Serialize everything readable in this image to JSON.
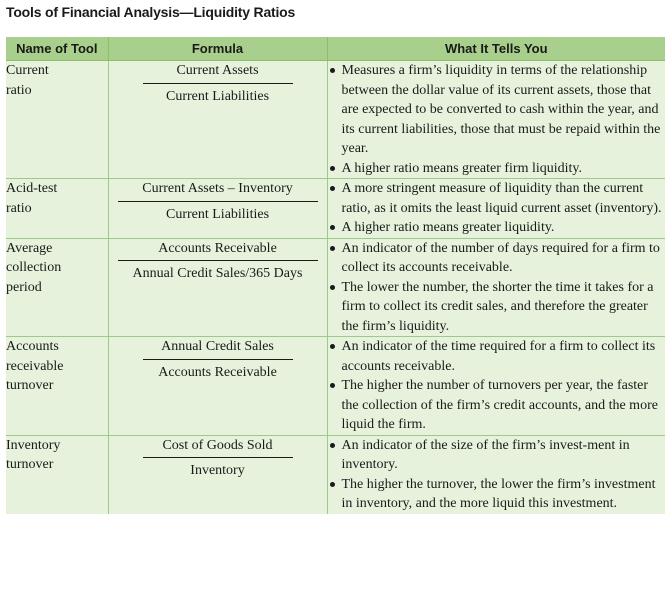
{
  "caption": "Tools of Financial Analysis—Liquidity Ratios",
  "headers": [
    "Name of Tool",
    "Formula",
    "What It Tells You"
  ],
  "rows": [
    {
      "tool": [
        "Current",
        "ratio"
      ],
      "numerator": "Current Assets",
      "denominator": "Current Liabilities",
      "bullets": [
        "Measures a firm’s liquidity in terms of the relationship between the dollar value of its current assets, those that are expected to be converted to cash within the year, and its current liabilities, those that must be repaid within the year.",
        "A higher ratio means greater firm liquidity."
      ]
    },
    {
      "tool": [
        "Acid-test",
        "ratio"
      ],
      "numerator": "Current Assets – Inventory",
      "denominator": "Current Liabilities",
      "bullets": [
        "A more stringent measure of liquidity than the current ratio, as it omits the least liquid current asset (inventory).",
        "A higher ratio means greater liquidity."
      ]
    },
    {
      "tool": [
        "Average",
        "collection",
        "period"
      ],
      "numerator": "Accounts Receivable",
      "denominator": "Annual Credit Sales/365 Days",
      "bullets": [
        "An indicator of the number of days required for a firm to collect its accounts receivable.",
        "The lower the number, the shorter the time it takes for a firm to collect its credit sales, and therefore the greater the firm’s liquidity."
      ]
    },
    {
      "tool": [
        "Accounts",
        "receivable",
        "turnover"
      ],
      "numerator": "Annual Credit Sales",
      "denominator": "Accounts Receivable",
      "bullets": [
        "An indicator of the time required for a firm to collect its accounts receivable.",
        "The higher the number of turnovers per year, the faster the collection of the firm’s credit accounts, and the more liquid the firm."
      ]
    },
    {
      "tool": [
        "Inventory",
        "turnover"
      ],
      "numerator": "Cost of Goods Sold",
      "denominator": "Inventory",
      "bullets": [
        "An indicator of the size of the firm’s invest-ment in inventory.",
        "The higher the turnover, the lower the firm’s investment in inventory, and the more liquid this investment."
      ]
    }
  ]
}
